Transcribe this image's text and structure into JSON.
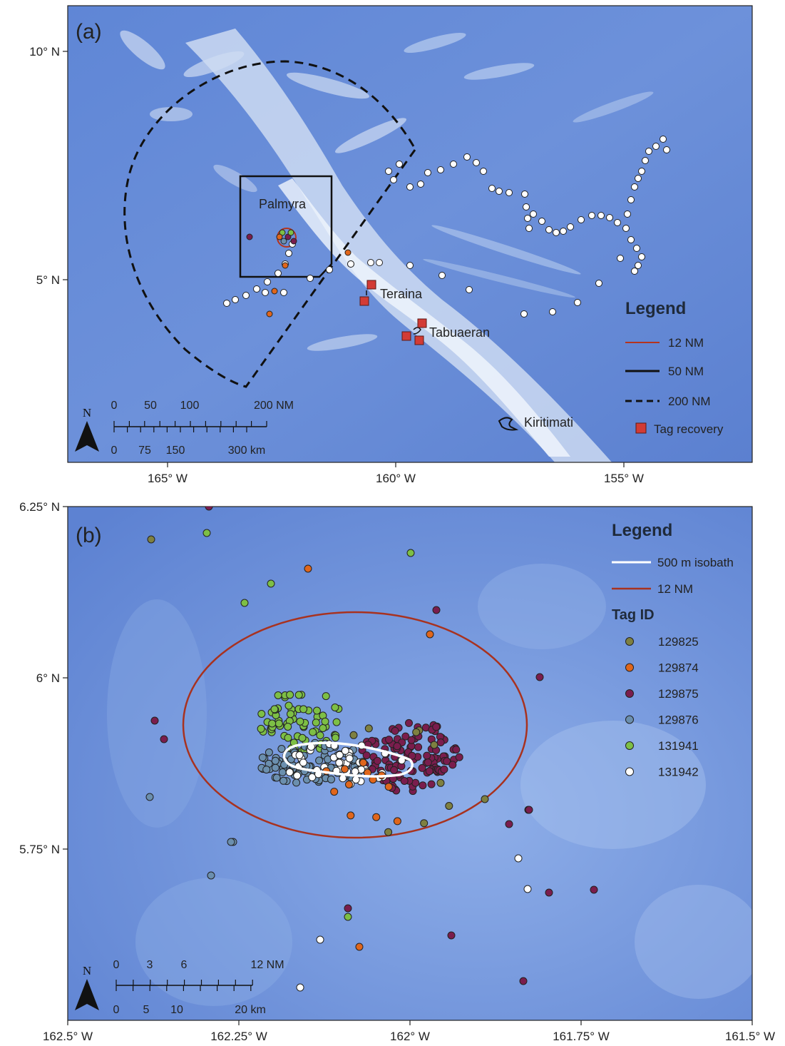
{
  "panel_a": {
    "label": "(a)",
    "x_ticks": [
      "165° W",
      "160° W",
      "155° W"
    ],
    "y_ticks": [
      "10° N",
      "5° N"
    ],
    "places": {
      "palmyra": "Palmyra",
      "teraina": "Teraina",
      "tabuaeran": "Tabuaeran",
      "kiritimati": "Kiritimati"
    },
    "legend": {
      "title": "Legend",
      "items": [
        {
          "label": "12 NM",
          "style": "solid",
          "color": "#b5341d"
        },
        {
          "label": "50 NM",
          "style": "solid",
          "color": "#111111"
        },
        {
          "label": "200 NM",
          "style": "dashed",
          "color": "#111111"
        },
        {
          "label": "Tag recovery",
          "style": "square",
          "color": "#d23b35"
        }
      ]
    },
    "scale": {
      "nm_labels": [
        "0",
        "50",
        "100",
        "200 NM"
      ],
      "km_labels": [
        "0",
        "75",
        "150",
        "300 km"
      ]
    },
    "north": "N"
  },
  "panel_b": {
    "label": "(b)",
    "x_ticks": [
      "162.5° W",
      "162.25° W",
      "162° W",
      "161.75° W",
      "161.5° W"
    ],
    "y_ticks": [
      "6.25° N",
      "6° N",
      "5.75° N"
    ],
    "legend": {
      "title": "Legend",
      "lines": [
        {
          "label": "500 m isobath",
          "color": "#ffffff"
        },
        {
          "label": "12 NM",
          "color": "#a8321f"
        }
      ],
      "tag_title": "Tag ID",
      "tags": [
        {
          "id": "129825",
          "color": "#7e8040"
        },
        {
          "id": "129874",
          "color": "#e0661c"
        },
        {
          "id": "129875",
          "color": "#7a1d4d"
        },
        {
          "id": "129876",
          "color": "#6b8fae"
        },
        {
          "id": "131941",
          "color": "#7dbf45"
        },
        {
          "id": "131942",
          "color": "#ffffff"
        }
      ]
    },
    "scale": {
      "nm_labels": [
        "0",
        "3",
        "6",
        "12 NM"
      ],
      "km_labels": [
        "0",
        "5",
        "10",
        "20 km"
      ]
    },
    "north": "N"
  },
  "colors": {
    "ocean_deep": "#5a7fd0",
    "ocean_light": "#8fb0e6",
    "ridge": "#dfeaf6",
    "tag_recovery": "#d23b35",
    "twelve_nm": "#a8321f"
  }
}
